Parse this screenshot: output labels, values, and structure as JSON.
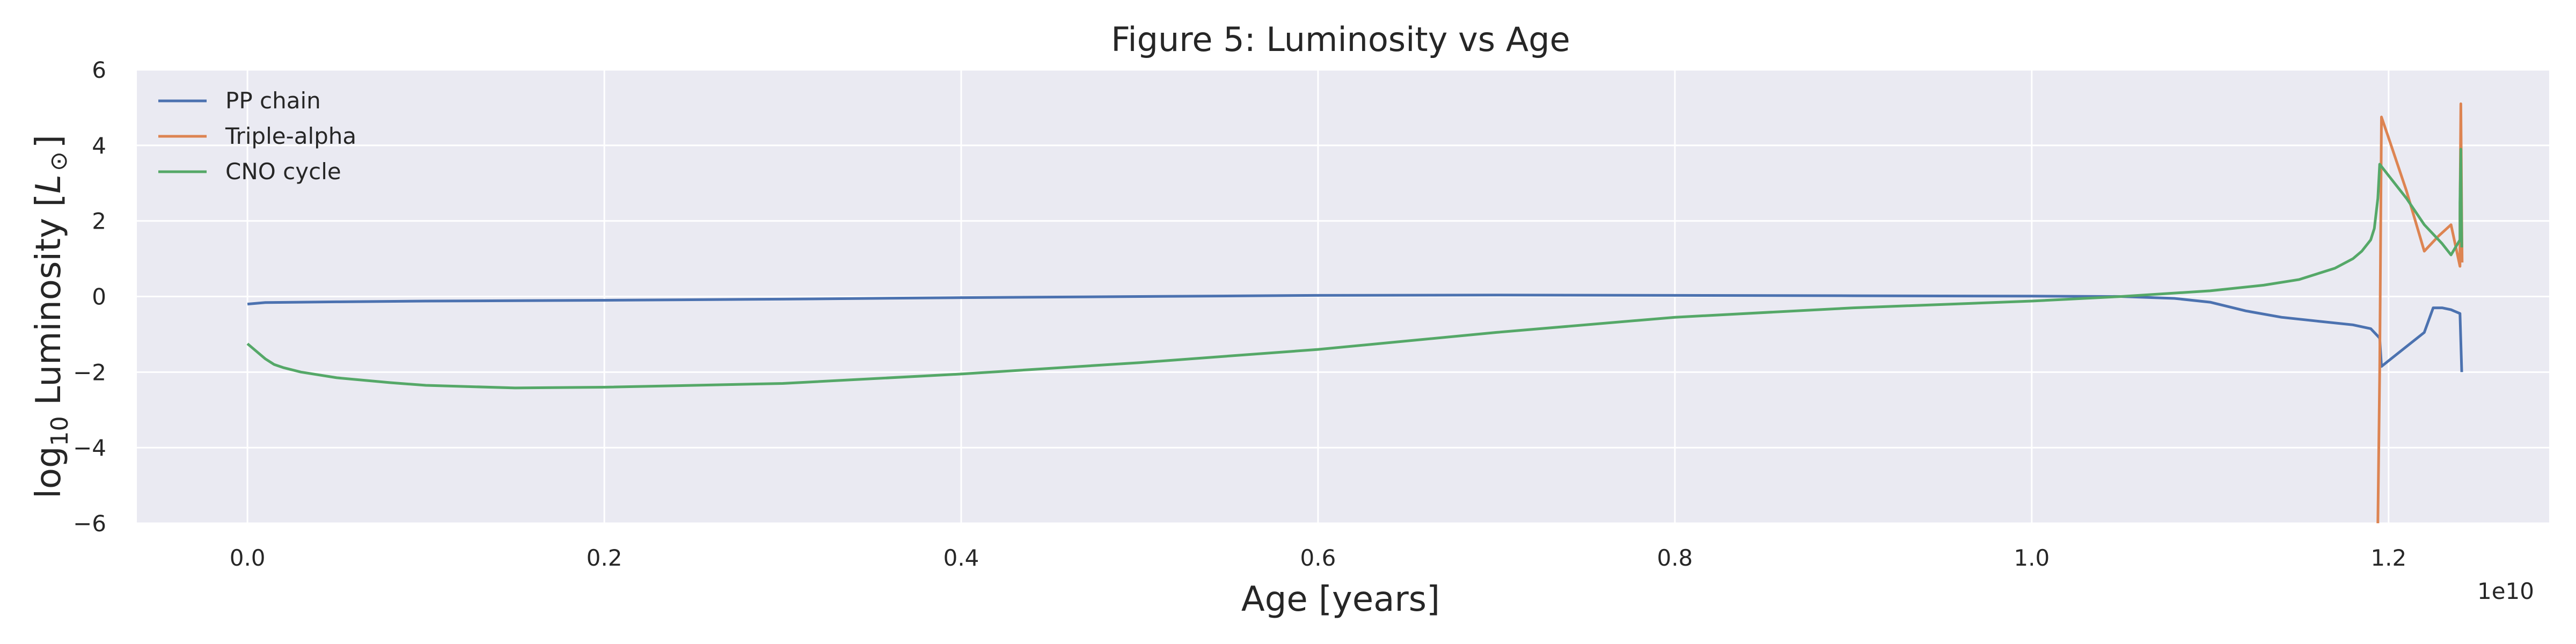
{
  "chart_data": {
    "type": "line",
    "title": "Figure 5: Luminosity vs Age",
    "xlabel": "Age [years]",
    "ylabel_parts": {
      "main": "log",
      "sub": "10",
      "rest": " Luminosity [",
      "sym": "L",
      "sun": "⊙",
      "close": "]"
    },
    "x_offset_label": "1e10",
    "xlim": [
      -0.062,
      1.29
    ],
    "ylim": [
      -6,
      6
    ],
    "xticks": [
      0.0,
      0.2,
      0.4,
      0.6,
      0.8,
      1.0,
      1.2
    ],
    "xtick_labels": [
      "0.0",
      "0.2",
      "0.4",
      "0.6",
      "0.8",
      "1.0",
      "1.2"
    ],
    "yticks": [
      -6,
      -4,
      -2,
      0,
      2,
      4,
      6
    ],
    "ytick_labels": [
      "−6",
      "−4",
      "−2",
      "0",
      "2",
      "4",
      "6"
    ],
    "grid": true,
    "legend_position": "top-left",
    "series": [
      {
        "name": "PP chain",
        "color": "#4c72b0",
        "x": [
          0.0,
          0.01,
          0.05,
          0.1,
          0.2,
          0.3,
          0.4,
          0.5,
          0.6,
          0.7,
          0.8,
          0.9,
          1.0,
          1.05,
          1.08,
          1.1,
          1.12,
          1.14,
          1.16,
          1.18,
          1.19,
          1.195,
          1.196,
          1.22,
          1.225,
          1.23,
          1.235,
          1.24,
          1.24,
          1.241
        ],
        "y": [
          -0.2,
          -0.16,
          -0.14,
          -0.12,
          -0.1,
          -0.07,
          -0.03,
          0.0,
          0.03,
          0.04,
          0.03,
          0.02,
          0.01,
          0.0,
          -0.05,
          -0.15,
          -0.38,
          -0.55,
          -0.65,
          -0.75,
          -0.85,
          -1.1,
          -1.85,
          -0.95,
          -0.3,
          -0.3,
          -0.35,
          -0.45,
          -0.45,
          -2.0
        ]
      },
      {
        "name": "Triple-alpha",
        "color": "#dd8452",
        "x": [
          1.194,
          1.195,
          1.196,
          1.2,
          1.21,
          1.22,
          1.228,
          1.235,
          1.24,
          1.24,
          1.2405,
          1.241,
          1.2412
        ],
        "y": [
          -6,
          -2,
          4.75,
          4.2,
          2.8,
          1.2,
          1.6,
          1.9,
          0.8,
          2.2,
          5.1,
          2.0,
          0.9
        ]
      },
      {
        "name": "CNO cycle",
        "color": "#55a868",
        "x": [
          0.0,
          0.005,
          0.01,
          0.015,
          0.02,
          0.03,
          0.05,
          0.08,
          0.1,
          0.15,
          0.2,
          0.3,
          0.4,
          0.5,
          0.6,
          0.7,
          0.8,
          0.9,
          1.0,
          1.05,
          1.1,
          1.13,
          1.15,
          1.17,
          1.18,
          1.185,
          1.19,
          1.192,
          1.194,
          1.195,
          1.2,
          1.21,
          1.22,
          1.23,
          1.235,
          1.24,
          1.24,
          1.2405,
          1.241
        ],
        "y": [
          -1.25,
          -1.45,
          -1.65,
          -1.8,
          -1.88,
          -2.0,
          -2.15,
          -2.28,
          -2.35,
          -2.42,
          -2.4,
          -2.3,
          -2.05,
          -1.75,
          -1.4,
          -0.95,
          -0.55,
          -0.3,
          -0.12,
          0.0,
          0.15,
          0.3,
          0.45,
          0.75,
          1.0,
          1.2,
          1.5,
          1.8,
          2.6,
          3.5,
          3.2,
          2.6,
          1.9,
          1.4,
          1.1,
          1.5,
          2.5,
          3.9,
          1.3
        ]
      }
    ]
  }
}
